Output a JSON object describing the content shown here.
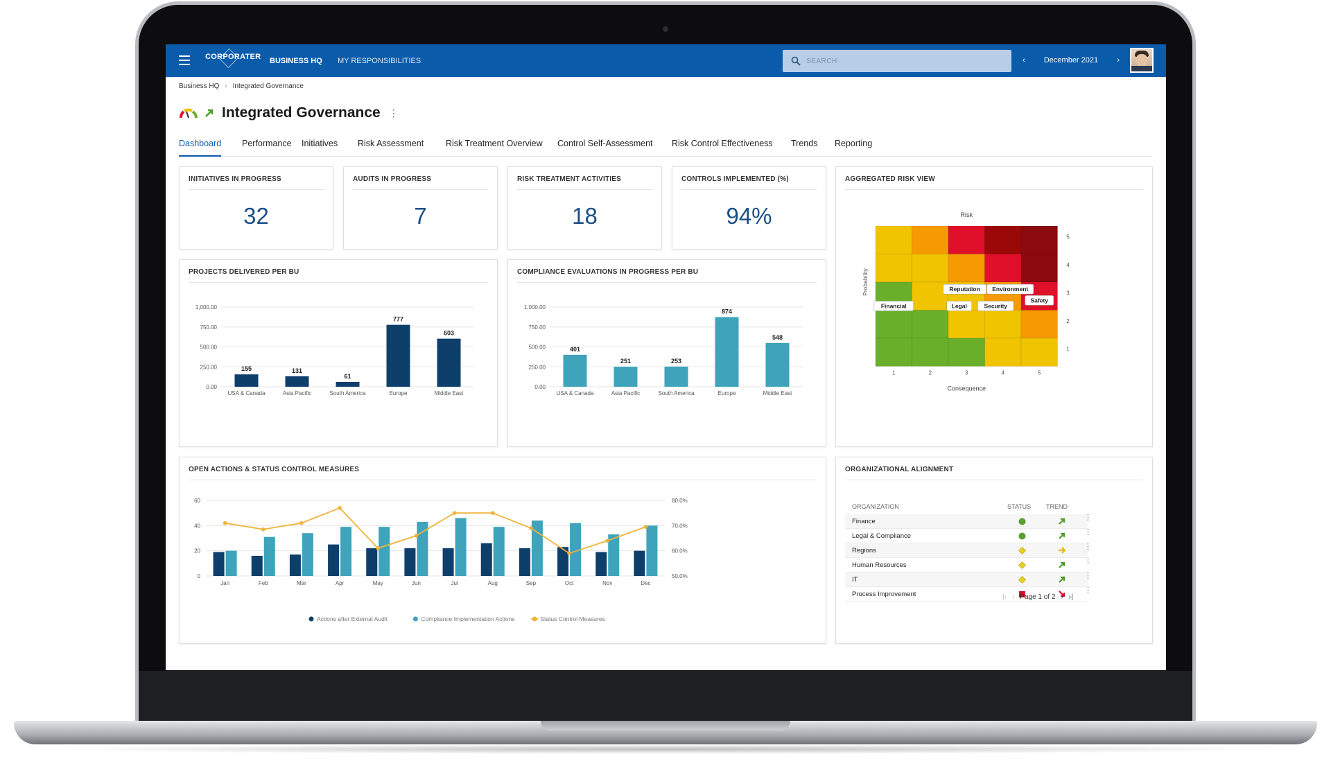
{
  "header": {
    "brand": "CORPORATER",
    "nav": [
      "BUSINESS HQ",
      "MY RESPONSIBILITIES"
    ],
    "search_placeholder": "SEARCH",
    "date": "December 2021"
  },
  "breadcrumb": [
    "Business HQ",
    "Integrated Governance"
  ],
  "page_title": "Integrated Governance",
  "tabs": [
    "Dashboard",
    "Performance",
    "Initiatives",
    "Risk Assessment",
    "Risk Treatment Overview",
    "Control Self-Assessment",
    "Risk Control Effectiveness",
    "Trends",
    "Reporting"
  ],
  "kpis": [
    {
      "label": "INITIATIVES IN PROGRESS",
      "value": "32"
    },
    {
      "label": "AUDITS IN PROGRESS",
      "value": "7"
    },
    {
      "label": "RISK TREATMENT ACTIVITIES",
      "value": "18"
    },
    {
      "label": "CONTROLS IMPLEMENTED (%)",
      "value": "94%"
    }
  ],
  "risk_view": {
    "title": "AGGREGATED RISK VIEW",
    "top_label": "Risk",
    "y_label": "Probability",
    "x_label": "Consequence",
    "x_ticks": [
      "1",
      "2",
      "3",
      "4",
      "5"
    ],
    "y_ticks": [
      "5",
      "4",
      "3",
      "2",
      "1"
    ],
    "colors": [
      [
        "#f0c400",
        "#f59a00",
        "#e0102a",
        "#9a0808",
        "#8a0a0e"
      ],
      [
        "#f0c400",
        "#f0c400",
        "#f59a00",
        "#e0102a",
        "#8a0a0e"
      ],
      [
        "#6aaf2a",
        "#f0c400",
        "#f0c400",
        "#f59a00",
        "#e0102a"
      ],
      [
        "#6aaf2a",
        "#6aaf2a",
        "#f0c400",
        "#f0c400",
        "#f59a00"
      ],
      [
        "#6aaf2a",
        "#6aaf2a",
        "#6aaf2a",
        "#f0c400",
        "#f0c400"
      ]
    ],
    "risks": [
      {
        "label": "Financial",
        "consequence": 1,
        "probability": 3
      },
      {
        "label": "Reputation",
        "consequence": 3,
        "probability": 3
      },
      {
        "label": "Environment",
        "consequence": 4,
        "probability": 3
      },
      {
        "label": "Legal",
        "consequence": 3,
        "probability": 3
      },
      {
        "label": "Security",
        "consequence": 4,
        "probability": 3
      },
      {
        "label": "Safety",
        "consequence": 5,
        "probability": 3
      }
    ]
  },
  "chart_data": [
    {
      "type": "bar",
      "title": "PROJECTS DELIVERED PER BU",
      "categories": [
        "USA & Canada",
        "Asia Pacific",
        "South America",
        "Europe",
        "Middle East"
      ],
      "values": [
        155,
        131,
        61,
        777,
        603
      ],
      "ylim": [
        0,
        1000
      ],
      "yticks": [
        "1,000.00",
        "750.00",
        "500.00",
        "250.00",
        "0.00"
      ],
      "color": "#0e3f6b"
    },
    {
      "type": "bar",
      "title": "COMPLIANCE EVALUATIONS IN PROGRESS PER BU",
      "categories": [
        "USA & Canada",
        "Asia Pacific",
        "South America",
        "Europe",
        "Middle East"
      ],
      "values": [
        401,
        251,
        253,
        874,
        548
      ],
      "ylim": [
        0,
        1000
      ],
      "yticks": [
        "1,000.00",
        "750.00",
        "500.00",
        "250.00",
        "0.00"
      ],
      "color": "#3ea3bb"
    },
    {
      "type": "bar",
      "title": "OPEN ACTIONS & STATUS CONTROL MEASURES",
      "categories": [
        "Jan",
        "Feb",
        "Mar",
        "Apr",
        "May",
        "Jun",
        "Jul",
        "Aug",
        "Sep",
        "Oct",
        "Nov",
        "Dec"
      ],
      "ylim": [
        0,
        60
      ],
      "y2lim": [
        50,
        80
      ],
      "yticks": [
        "60",
        "40",
        "20",
        "0"
      ],
      "y2ticks": [
        "80.0%",
        "70.0%",
        "60.0%",
        "50.0%"
      ],
      "series": [
        {
          "name": "Actions after External Audit",
          "type": "bar",
          "color": "#0e3f6b",
          "values": [
            19,
            16,
            17,
            25,
            22,
            22,
            22,
            26,
            22,
            23,
            19,
            20
          ]
        },
        {
          "name": "Compliance Implementation Actions",
          "type": "bar",
          "color": "#3ea3bb",
          "values": [
            20,
            31,
            34,
            39,
            39,
            43,
            46,
            39,
            44,
            42,
            33,
            40
          ]
        },
        {
          "name": "Status Control Measures",
          "type": "line",
          "color": "#f0b43a",
          "values": [
            71,
            68.5,
            71,
            77,
            61,
            66,
            75,
            75,
            69,
            59,
            64,
            69.5
          ]
        }
      ]
    }
  ],
  "org_alignment": {
    "title": "ORGANIZATIONAL ALIGNMENT",
    "columns": [
      "ORGANIZATION",
      "STATUS",
      "TREND"
    ],
    "rows": [
      {
        "name": "Finance",
        "status": "green-circle",
        "trend": "up"
      },
      {
        "name": "Legal & Compliance",
        "status": "green-circle",
        "trend": "up"
      },
      {
        "name": "Regions",
        "status": "yellow-diamond",
        "trend": "right"
      },
      {
        "name": "Human Resources",
        "status": "yellow-diamond",
        "trend": "up"
      },
      {
        "name": "IT",
        "status": "yellow-diamond",
        "trend": "up"
      },
      {
        "name": "Process Improvement",
        "status": "red-square",
        "trend": "down"
      }
    ],
    "pager": "Page 1 of 2"
  }
}
